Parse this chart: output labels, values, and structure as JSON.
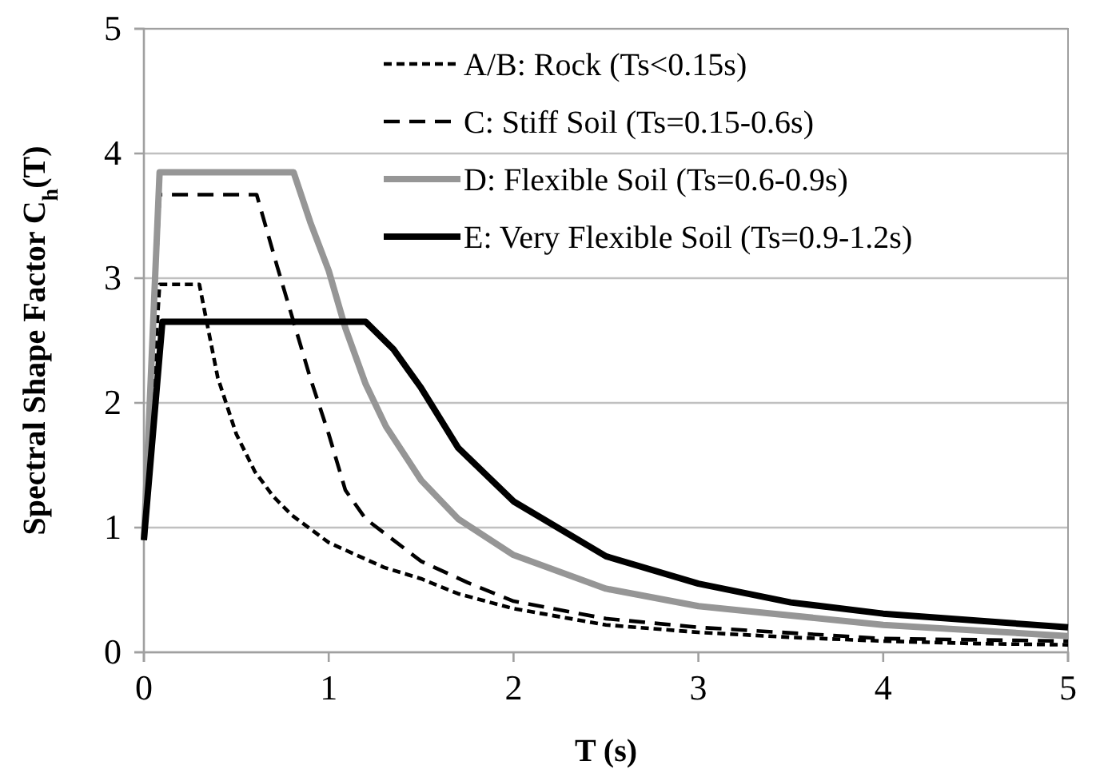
{
  "chart_data": {
    "type": "line",
    "xlabel": "T (s)",
    "ylabel": "Spectral Shape Factor  C$_{h}$(T)",
    "xlim": [
      0,
      5
    ],
    "xticks": [
      0,
      1,
      2,
      3,
      4,
      5
    ],
    "ylim": [
      0,
      5
    ],
    "yticks": [
      0,
      1,
      2,
      3,
      4,
      5
    ],
    "grid": "y",
    "legend": "top right",
    "marker": "none",
    "series": [
      {
        "name": "A/B: Rock (Ts<0.15s)",
        "color": "#000000",
        "line_style": "dotted",
        "x": [
          0,
          0.085,
          0.3,
          0.4,
          0.5,
          0.6,
          0.7,
          0.8,
          1.0,
          1.3,
          1.5,
          1.7,
          2,
          2.5,
          3,
          3.5,
          4,
          4.5,
          5
        ],
        "values": [
          0.9,
          2.95,
          2.95,
          2.2,
          1.75,
          1.45,
          1.25,
          1.1,
          0.88,
          0.68,
          0.59,
          0.47,
          0.35,
          0.22,
          0.16,
          0.12,
          0.09,
          0.07,
          0.06
        ]
      },
      {
        "name": "C: Stiff Soil (Ts=0.15-0.6s)",
        "color": "#000000",
        "line_style": "dashed",
        "x": [
          0,
          0.085,
          0.61,
          0.72,
          0.9,
          1.0,
          1.09,
          1.2,
          1.5,
          1.75,
          2,
          2.5,
          3,
          4,
          5
        ],
        "values": [
          0.9,
          3.67,
          3.67,
          3.1,
          2.2,
          1.75,
          1.3,
          1.07,
          0.73,
          0.56,
          0.41,
          0.27,
          0.2,
          0.11,
          0.09
        ]
      },
      {
        "name": "D: Flexible Soil (Ts=0.6-0.9s)",
        "color": "#969696",
        "line_style": "solid",
        "x": [
          0,
          0.085,
          0.81,
          0.9,
          1.0,
          1.09,
          1.2,
          1.31,
          1.5,
          1.7,
          2,
          2.5,
          3,
          4,
          5
        ],
        "values": [
          0.9,
          3.85,
          3.85,
          3.45,
          3.06,
          2.6,
          2.15,
          1.81,
          1.38,
          1.07,
          0.78,
          0.51,
          0.37,
          0.22,
          0.13
        ]
      },
      {
        "name": "E: Very Flexible Soil (Ts=0.9-1.2s)",
        "color": "#000000",
        "line_style": "solid",
        "x": [
          0,
          0.1,
          1.2,
          1.35,
          1.5,
          1.7,
          2,
          2.5,
          3,
          3.5,
          4,
          5
        ],
        "values": [
          0.9,
          2.65,
          2.65,
          2.43,
          2.12,
          1.64,
          1.21,
          0.77,
          0.55,
          0.4,
          0.31,
          0.2
        ]
      }
    ]
  }
}
